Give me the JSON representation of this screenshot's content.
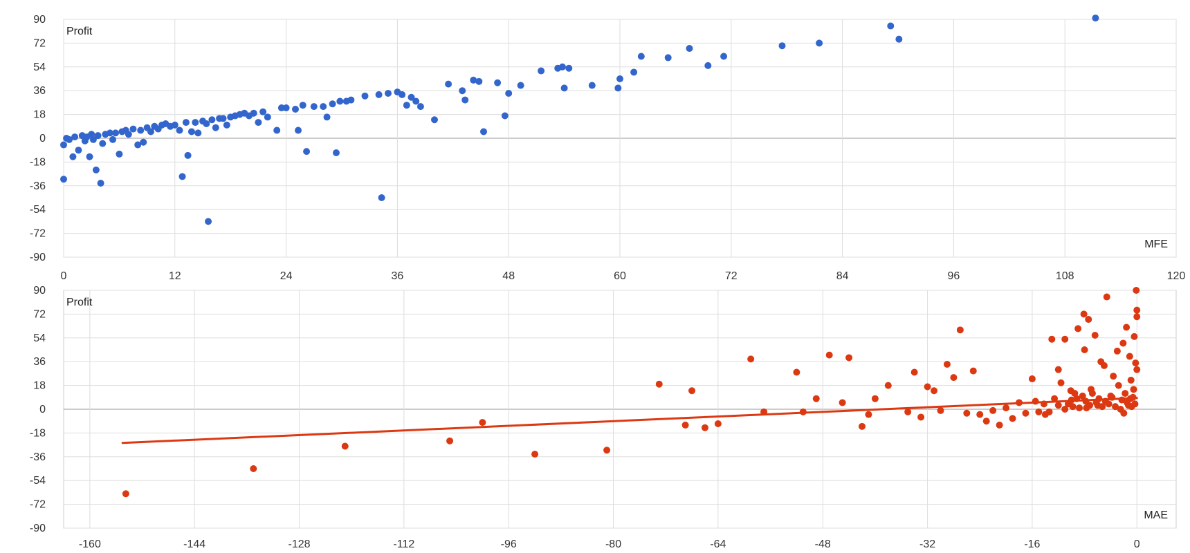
{
  "chart_data": [
    {
      "type": "scatter",
      "xlabel": "MFE",
      "ylabel": "Profit",
      "xlim": [
        0,
        120
      ],
      "ylim": [
        -90,
        90
      ],
      "xticks": [
        "0",
        "12",
        "24",
        "36",
        "48",
        "60",
        "72",
        "84",
        "96",
        "108",
        "120"
      ],
      "yticks": [
        "90",
        "72",
        "54",
        "36",
        "18",
        "0",
        "-18",
        "-36",
        "-54",
        "-72",
        "-90"
      ],
      "grid": true,
      "colors": {
        "points": "#3366cc"
      },
      "series": [
        {
          "points": [
            [
              0,
              -31
            ],
            [
              0,
              -5
            ],
            [
              0.3,
              0
            ],
            [
              0.6,
              -1
            ],
            [
              1,
              -14
            ],
            [
              1.2,
              1
            ],
            [
              1.6,
              -9
            ],
            [
              2,
              2
            ],
            [
              2.3,
              -2
            ],
            [
              2.5,
              1
            ],
            [
              2.8,
              -14
            ],
            [
              3,
              3
            ],
            [
              3.2,
              -1
            ],
            [
              3.5,
              -24
            ],
            [
              3.7,
              2
            ],
            [
              4,
              -34
            ],
            [
              4.2,
              -4
            ],
            [
              4.5,
              3
            ],
            [
              5,
              4
            ],
            [
              5.3,
              -1
            ],
            [
              5.6,
              4
            ],
            [
              6,
              -12
            ],
            [
              6.3,
              5
            ],
            [
              6.7,
              6
            ],
            [
              7,
              3
            ],
            [
              7.5,
              7
            ],
            [
              8,
              -5
            ],
            [
              8.3,
              6
            ],
            [
              8.6,
              -3
            ],
            [
              9,
              8
            ],
            [
              9.4,
              5
            ],
            [
              9.8,
              9
            ],
            [
              10.2,
              7
            ],
            [
              10.6,
              10
            ],
            [
              11,
              11
            ],
            [
              11.5,
              9
            ],
            [
              12,
              10
            ],
            [
              12.5,
              6
            ],
            [
              12.8,
              -29
            ],
            [
              13.2,
              12
            ],
            [
              13.4,
              -13
            ],
            [
              13.8,
              5
            ],
            [
              14.2,
              12
            ],
            [
              14.5,
              4
            ],
            [
              15,
              13
            ],
            [
              15.4,
              11
            ],
            [
              15.6,
              -63
            ],
            [
              16,
              14
            ],
            [
              16.4,
              8
            ],
            [
              16.8,
              15
            ],
            [
              17.2,
              15
            ],
            [
              17.6,
              10
            ],
            [
              18,
              16
            ],
            [
              18.5,
              17
            ],
            [
              19,
              18
            ],
            [
              19.5,
              19
            ],
            [
              20,
              17
            ],
            [
              20.5,
              19
            ],
            [
              21,
              12
            ],
            [
              21.5,
              20
            ],
            [
              22,
              16
            ],
            [
              23,
              6
            ],
            [
              23.5,
              23
            ],
            [
              24,
              23
            ],
            [
              25,
              22
            ],
            [
              25.3,
              6
            ],
            [
              25.8,
              25
            ],
            [
              26.2,
              -10
            ],
            [
              27,
              24
            ],
            [
              28,
              24
            ],
            [
              28.4,
              16
            ],
            [
              29,
              26
            ],
            [
              29.4,
              -11
            ],
            [
              29.8,
              28
            ],
            [
              30.5,
              28
            ],
            [
              31,
              29
            ],
            [
              32.5,
              32
            ],
            [
              34,
              33
            ],
            [
              34.3,
              -45
            ],
            [
              35,
              34
            ],
            [
              36,
              35
            ],
            [
              36.5,
              33
            ],
            [
              37,
              25
            ],
            [
              37.5,
              31
            ],
            [
              38,
              28
            ],
            [
              38.5,
              24
            ],
            [
              40,
              14
            ],
            [
              41.5,
              41
            ],
            [
              43,
              36
            ],
            [
              43.3,
              29
            ],
            [
              44.2,
              44
            ],
            [
              44.8,
              43
            ],
            [
              45.3,
              5
            ],
            [
              46.8,
              42
            ],
            [
              47.6,
              17
            ],
            [
              48,
              34
            ],
            [
              49.3,
              40
            ],
            [
              51.5,
              51
            ],
            [
              53.3,
              53
            ],
            [
              53.8,
              54
            ],
            [
              54,
              38
            ],
            [
              54.5,
              53
            ],
            [
              57,
              40
            ],
            [
              59.8,
              38
            ],
            [
              60,
              45
            ],
            [
              61.5,
              50
            ],
            [
              62.3,
              62
            ],
            [
              65.2,
              61
            ],
            [
              67.5,
              68
            ],
            [
              69.5,
              55
            ],
            [
              71.2,
              62
            ],
            [
              77.5,
              70
            ],
            [
              81.5,
              72
            ],
            [
              89.2,
              85
            ],
            [
              90.1,
              75
            ],
            [
              111.3,
              91
            ]
          ]
        }
      ]
    },
    {
      "type": "scatter",
      "xlabel": "MAE",
      "ylabel": "Profit",
      "xlim": [
        -164,
        6
      ],
      "ylim": [
        -90,
        90
      ],
      "xticks": [
        "-160",
        "-144",
        "-128",
        "-112",
        "-96",
        "-80",
        "-64",
        "-48",
        "-32",
        "-16",
        "0"
      ],
      "yticks": [
        "90",
        "72",
        "54",
        "36",
        "18",
        "0",
        "-18",
        "-36",
        "-54",
        "-72",
        "-90"
      ],
      "grid": true,
      "colors": {
        "points": "#dc3912",
        "trendline": "#dc3912"
      },
      "trendline": {
        "x": [
          -155,
          0
        ],
        "y": [
          -25.5,
          8.5
        ]
      },
      "series": [
        {
          "points": [
            [
              -154.5,
              -64
            ],
            [
              -135,
              -45
            ],
            [
              -121,
              -28
            ],
            [
              -105,
              -24
            ],
            [
              -100,
              -10
            ],
            [
              -92,
              -34
            ],
            [
              -81,
              -31
            ],
            [
              -73,
              19
            ],
            [
              -69,
              -12
            ],
            [
              -68,
              14
            ],
            [
              -66,
              -14
            ],
            [
              -64,
              -11
            ],
            [
              -59,
              38
            ],
            [
              -57,
              -2
            ],
            [
              -52,
              28
            ],
            [
              -51,
              -2
            ],
            [
              -49,
              8
            ],
            [
              -47,
              41
            ],
            [
              -45,
              5
            ],
            [
              -44,
              39
            ],
            [
              -42,
              -13
            ],
            [
              -41,
              -4
            ],
            [
              -40,
              8
            ],
            [
              -38,
              18
            ],
            [
              -35,
              -2
            ],
            [
              -34,
              28
            ],
            [
              -33,
              -6
            ],
            [
              -32,
              17
            ],
            [
              -31,
              14
            ],
            [
              -30,
              -1
            ],
            [
              -29,
              34
            ],
            [
              -28,
              24
            ],
            [
              -27,
              60
            ],
            [
              -26,
              -3
            ],
            [
              -25,
              29
            ],
            [
              -24,
              -4
            ],
            [
              -23,
              -9
            ],
            [
              -22,
              -1
            ],
            [
              -21,
              -12
            ],
            [
              -20,
              1
            ],
            [
              -19,
              -7
            ],
            [
              -18,
              5
            ],
            [
              -17,
              -3
            ],
            [
              -16,
              23
            ],
            [
              -15,
              -2
            ],
            [
              -14,
              -4
            ],
            [
              -13,
              53
            ],
            [
              -12,
              30
            ],
            [
              -11,
              53
            ],
            [
              -10,
              7
            ],
            [
              -9.5,
              12
            ],
            [
              -9,
              61
            ],
            [
              -8,
              45
            ],
            [
              -7,
              15
            ],
            [
              -6,
              3
            ],
            [
              -5.5,
              36
            ],
            [
              -5,
              33
            ],
            [
              -4,
              10
            ],
            [
              -3,
              44
            ],
            [
              -2.5,
              0
            ],
            [
              -2,
              -3
            ],
            [
              -1.5,
              5
            ],
            [
              -1,
              8
            ],
            [
              -0.8,
              2
            ],
            [
              -0.5,
              15
            ],
            [
              -0.3,
              4
            ],
            [
              -0.1,
              90
            ],
            [
              0,
              70
            ],
            [
              0,
              75
            ],
            [
              0,
              30
            ],
            [
              -12,
              3
            ],
            [
              -11,
              0
            ],
            [
              -10.5,
              4
            ],
            [
              -9.8,
              2
            ],
            [
              -9.2,
              8
            ],
            [
              -8.8,
              1
            ],
            [
              -8.3,
              10
            ],
            [
              -7.8,
              6
            ],
            [
              -7.2,
              3
            ],
            [
              -6.8,
              12
            ],
            [
              -6.2,
              5
            ],
            [
              -5.8,
              8
            ],
            [
              -5.3,
              2
            ],
            [
              -4.8,
              6
            ],
            [
              -4.3,
              4
            ],
            [
              -3.8,
              9
            ],
            [
              -3.3,
              2
            ],
            [
              -2.8,
              18
            ],
            [
              -2.3,
              7
            ],
            [
              -1.8,
              12
            ],
            [
              -1.3,
              3
            ],
            [
              -0.9,
              22
            ],
            [
              -0.6,
              9
            ],
            [
              -0.2,
              35
            ],
            [
              -15.5,
              6
            ],
            [
              -14.2,
              4
            ],
            [
              -13.4,
              -2
            ],
            [
              -12.6,
              8
            ],
            [
              -11.6,
              20
            ],
            [
              -10.1,
              14
            ],
            [
              -8.1,
              72
            ],
            [
              -7.4,
              68
            ],
            [
              -6.4,
              56
            ],
            [
              -4.6,
              85
            ],
            [
              -3.6,
              25
            ],
            [
              -2.1,
              50
            ],
            [
              -1.6,
              62
            ],
            [
              -0.4,
              55
            ],
            [
              -1.1,
              40
            ],
            [
              -7.7,
              1
            ]
          ]
        }
      ]
    }
  ]
}
